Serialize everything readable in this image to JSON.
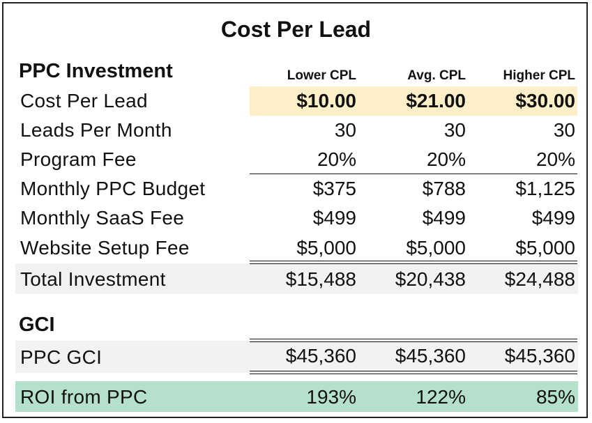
{
  "title": "Cost Per Lead",
  "ppc_section": "PPC Investment",
  "columns": [
    "Lower CPL",
    "Avg. CPL",
    "Higher CPL"
  ],
  "rows": [
    {
      "label": "Cost Per Lead",
      "values": [
        "$10.00",
        "$21.00",
        "$30.00"
      ]
    },
    {
      "label": "Leads Per Month",
      "values": [
        "30",
        "30",
        "30"
      ]
    },
    {
      "label": "Program Fee",
      "values": [
        "20%",
        "20%",
        "20%"
      ]
    },
    {
      "label": "Monthly PPC Budget",
      "values": [
        "$375",
        "$788",
        "$1,125"
      ]
    },
    {
      "label": "Monthly SaaS Fee",
      "values": [
        "$499",
        "$499",
        "$499"
      ]
    },
    {
      "label": "Website Setup Fee",
      "values": [
        "$5,000",
        "$5,000",
        "$5,000"
      ]
    }
  ],
  "total": {
    "label": "Total Investment",
    "values": [
      "$15,488",
      "$20,438",
      "$24,488"
    ]
  },
  "gci_section": "GCI",
  "gci": {
    "label": "PPC GCI",
    "values": [
      "$45,360",
      "$45,360",
      "$45,360"
    ]
  },
  "roi": {
    "label": "ROI from PPC",
    "values": [
      "193%",
      "122%",
      "85%"
    ]
  },
  "colors": {
    "cpl_highlight": "#fdf0c8",
    "total_band": "#f2f2f2",
    "gci_band": "#f2f2f2",
    "roi_band": "#b5e0cb"
  }
}
